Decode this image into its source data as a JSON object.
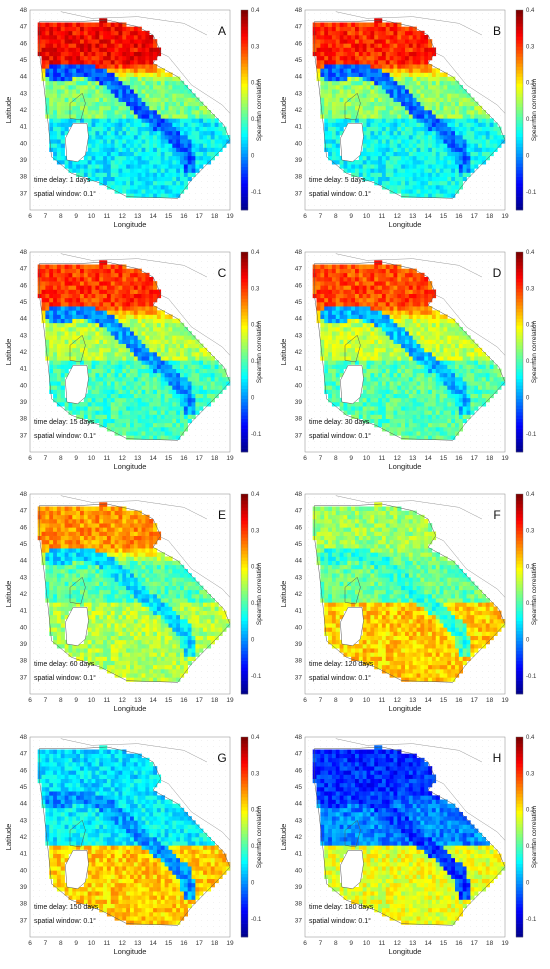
{
  "chart_data": [
    {
      "type": "heatmap",
      "panel_label": "A",
      "time_delay": "time delay: 1 days",
      "spatial_window": "spatial window: 0.1°",
      "xlabel": "Longitude",
      "ylabel": "Latitude",
      "colorbar_label": "Spearman correlation",
      "xlim": [
        6,
        19
      ],
      "ylim": [
        36,
        48
      ],
      "clim": [
        -0.15,
        0.4
      ],
      "x_ticks": [
        "6",
        "7",
        "8",
        "9",
        "10",
        "11",
        "12",
        "13",
        "14",
        "15",
        "16",
        "17",
        "18",
        "19"
      ],
      "y_ticks": [
        "37",
        "38",
        "39",
        "40",
        "41",
        "42",
        "43",
        "44",
        "45",
        "46",
        "47",
        "48"
      ],
      "colorbar_ticks": [
        "-0.1",
        "0",
        "0.1",
        "0.2",
        "0.3",
        "0.4"
      ],
      "region_values": {
        "north": 0.33,
        "central": 0.12,
        "south": 0.05,
        "appennines": -0.03
      }
    },
    {
      "type": "heatmap",
      "panel_label": "B",
      "time_delay": "time delay: 5 days",
      "spatial_window": "spatial window: 0.1°",
      "xlabel": "Longitude",
      "ylabel": "Latitude",
      "colorbar_label": "Spearman correlation",
      "xlim": [
        6,
        19
      ],
      "ylim": [
        36,
        48
      ],
      "clim": [
        -0.15,
        0.4
      ],
      "x_ticks": [
        "6",
        "7",
        "8",
        "9",
        "10",
        "11",
        "12",
        "13",
        "14",
        "15",
        "16",
        "17",
        "18",
        "19"
      ],
      "y_ticks": [
        "37",
        "38",
        "39",
        "40",
        "41",
        "42",
        "43",
        "44",
        "45",
        "46",
        "47",
        "48"
      ],
      "colorbar_ticks": [
        "-0.1",
        "0",
        "0.1",
        "0.2",
        "0.3",
        "0.4"
      ],
      "region_values": {
        "north": 0.31,
        "central": 0.13,
        "south": 0.06,
        "appennines": -0.02
      }
    },
    {
      "type": "heatmap",
      "panel_label": "C",
      "time_delay": "time delay: 15 days",
      "spatial_window": "spatial window: 0.1°",
      "xlabel": "Longitude",
      "ylabel": "Latitude",
      "colorbar_label": "Spearman correlation",
      "xlim": [
        6,
        19
      ],
      "ylim": [
        36,
        48
      ],
      "clim": [
        -0.15,
        0.4
      ],
      "x_ticks": [
        "6",
        "7",
        "8",
        "9",
        "10",
        "11",
        "12",
        "13",
        "14",
        "15",
        "16",
        "17",
        "18",
        "19"
      ],
      "y_ticks": [
        "37",
        "38",
        "39",
        "40",
        "41",
        "42",
        "43",
        "44",
        "45",
        "46",
        "47",
        "48"
      ],
      "colorbar_ticks": [
        "-0.1",
        "0",
        "0.1",
        "0.2",
        "0.3",
        "0.4"
      ],
      "region_values": {
        "north": 0.3,
        "central": 0.15,
        "south": 0.09,
        "appennines": 0.0
      }
    },
    {
      "type": "heatmap",
      "panel_label": "D",
      "time_delay": "time delay: 30 days",
      "spatial_window": "spatial window: 0.1°",
      "xlabel": "Longitude",
      "ylabel": "Latitude",
      "colorbar_label": "Spearman correlation",
      "xlim": [
        6,
        19
      ],
      "ylim": [
        36,
        48
      ],
      "clim": [
        -0.15,
        0.4
      ],
      "x_ticks": [
        "6",
        "7",
        "8",
        "9",
        "10",
        "11",
        "12",
        "13",
        "14",
        "15",
        "16",
        "17",
        "18",
        "19"
      ],
      "y_ticks": [
        "37",
        "38",
        "39",
        "40",
        "41",
        "42",
        "43",
        "44",
        "45",
        "46",
        "47",
        "48"
      ],
      "colorbar_ticks": [
        "-0.1",
        "0",
        "0.1",
        "0.2",
        "0.3",
        "0.4"
      ],
      "region_values": {
        "north": 0.29,
        "central": 0.16,
        "south": 0.1,
        "appennines": 0.02
      }
    },
    {
      "type": "heatmap",
      "panel_label": "E",
      "time_delay": "time delay: 60 days",
      "spatial_window": "spatial window: 0.1°",
      "xlabel": "Longitude",
      "ylabel": "Latitude",
      "colorbar_label": "Spearman correlation",
      "xlim": [
        6,
        19
      ],
      "ylim": [
        36,
        48
      ],
      "clim": [
        -0.15,
        0.4
      ],
      "x_ticks": [
        "6",
        "7",
        "8",
        "9",
        "10",
        "11",
        "12",
        "13",
        "14",
        "15",
        "16",
        "17",
        "18",
        "19"
      ],
      "y_ticks": [
        "37",
        "38",
        "39",
        "40",
        "41",
        "42",
        "43",
        "44",
        "45",
        "46",
        "47",
        "48"
      ],
      "colorbar_ticks": [
        "-0.1",
        "0",
        "0.1",
        "0.2",
        "0.3",
        "0.4"
      ],
      "region_values": {
        "north": 0.25,
        "central": 0.1,
        "south": 0.15,
        "appennines": 0.04
      }
    },
    {
      "type": "heatmap",
      "panel_label": "F",
      "time_delay": "time delay: 120 days",
      "spatial_window": "spatial window: 0.1°",
      "xlabel": "Longitude",
      "ylabel": "Latitude",
      "colorbar_label": "Spearman correlation",
      "xlim": [
        6,
        19
      ],
      "ylim": [
        36,
        48
      ],
      "clim": [
        -0.15,
        0.4
      ],
      "x_ticks": [
        "6",
        "7",
        "8",
        "9",
        "10",
        "11",
        "12",
        "13",
        "14",
        "15",
        "16",
        "17",
        "18",
        "19"
      ],
      "y_ticks": [
        "37",
        "38",
        "39",
        "40",
        "41",
        "42",
        "43",
        "44",
        "45",
        "46",
        "47",
        "48"
      ],
      "colorbar_ticks": [
        "-0.1",
        "0",
        "0.1",
        "0.2",
        "0.3",
        "0.4"
      ],
      "region_values": {
        "north": 0.14,
        "central": 0.11,
        "south": 0.22,
        "appennines": 0.08
      }
    },
    {
      "type": "heatmap",
      "panel_label": "G",
      "time_delay": "time delay: 150 days",
      "spatial_window": "spatial window: 0.1°",
      "xlabel": "Longitude",
      "ylabel": "Latitude",
      "colorbar_label": "Spearman correlation",
      "xlim": [
        6,
        19
      ],
      "ylim": [
        36,
        48
      ],
      "clim": [
        -0.15,
        0.4
      ],
      "x_ticks": [
        "6",
        "7",
        "8",
        "9",
        "10",
        "11",
        "12",
        "13",
        "14",
        "15",
        "16",
        "17",
        "18",
        "19"
      ],
      "y_ticks": [
        "37",
        "38",
        "39",
        "40",
        "41",
        "42",
        "43",
        "44",
        "45",
        "46",
        "47",
        "48"
      ],
      "colorbar_ticks": [
        "-0.1",
        "0",
        "0.1",
        "0.2",
        "0.3",
        "0.4"
      ],
      "region_values": {
        "north": 0.04,
        "central": 0.05,
        "south": 0.22,
        "appennines": 0.0
      }
    },
    {
      "type": "heatmap",
      "panel_label": "H",
      "time_delay": "time delay: 180 days",
      "spatial_window": "spatial window: 0.1°",
      "xlabel": "Longitude",
      "ylabel": "Latitude",
      "colorbar_label": "Spearman correlation",
      "xlim": [
        6,
        19
      ],
      "ylim": [
        36,
        48
      ],
      "clim": [
        -0.15,
        0.4
      ],
      "x_ticks": [
        "6",
        "7",
        "8",
        "9",
        "10",
        "11",
        "12",
        "13",
        "14",
        "15",
        "16",
        "17",
        "18",
        "19"
      ],
      "y_ticks": [
        "37",
        "38",
        "39",
        "40",
        "41",
        "42",
        "43",
        "44",
        "45",
        "46",
        "47",
        "48"
      ],
      "colorbar_ticks": [
        "-0.1",
        "0",
        "0.1",
        "0.2",
        "0.3",
        "0.4"
      ],
      "region_values": {
        "north": -0.06,
        "central": -0.01,
        "south": 0.18,
        "appennines": -0.05
      }
    }
  ],
  "colormap": [
    "#00008f",
    "#0000ff",
    "#007fff",
    "#00ffff",
    "#7fff7f",
    "#ffff00",
    "#ff7f00",
    "#ff0000",
    "#7f0000"
  ],
  "colors": {
    "border_line": "#555555",
    "coast_line": "#999999",
    "grid_dot": "#d9d9d9",
    "sardinia_hole": "#ffffff"
  }
}
